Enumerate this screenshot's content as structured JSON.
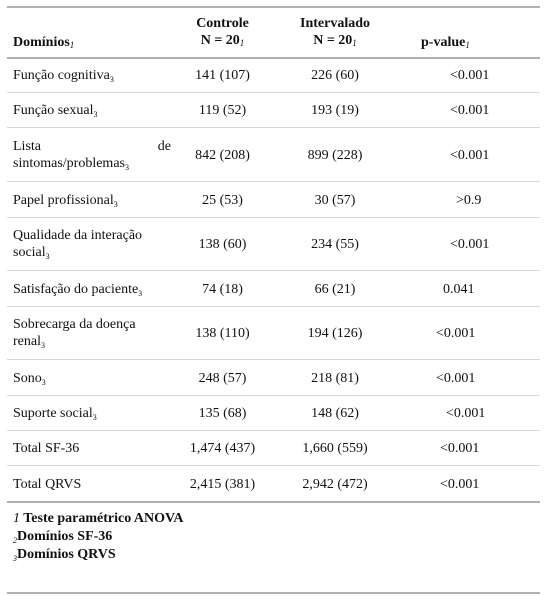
{
  "header": {
    "col1": "Domínios",
    "col1_note": "1",
    "col2_line1": "Controle",
    "col2_line2": "N = 20",
    "col2_note": "1",
    "col3_line1": "Intervalado",
    "col3_line2": "N = 20",
    "col3_note": "1",
    "col4": "p-value",
    "col4_note": "1"
  },
  "rows": [
    {
      "domain": "Função cognitiva",
      "note": "3",
      "controle": "141 (107)",
      "intervalado": "226 (60)",
      "p": "<0.001"
    },
    {
      "domain": "Função sexual",
      "note": "3",
      "controle": "119 (52)",
      "intervalado": "193 (19)",
      "p": "<0.001"
    },
    {
      "domain_line1": "Lista",
      "domain_line1b": "de",
      "domain_line2": "sintomas/problemas",
      "note": "3",
      "controle": "842 (208)",
      "intervalado": "899 (228)",
      "p": "<0.001"
    },
    {
      "domain": "Papel profissional",
      "note": "3",
      "controle": "25 (53)",
      "intervalado": "30 (57)",
      "p": ">0.9"
    },
    {
      "domain_line1": "Qualidade da interação",
      "domain_line2": "social",
      "note": "3",
      "controle": "138 (60)",
      "intervalado": "234 (55)",
      "p": "<0.001"
    },
    {
      "domain": "Satisfação do paciente",
      "note": "3",
      "controle": "74 (18)",
      "intervalado": "66 (21)",
      "p": "0.041"
    },
    {
      "domain_line1": "Sobrecarga da doença",
      "domain_line2": "renal",
      "note": "3",
      "controle": "138 (110)",
      "intervalado": "194 (126)",
      "p": "<0.001"
    },
    {
      "domain": "Sono",
      "note": "3",
      "controle": "248 (57)",
      "intervalado": "218 (81)",
      "p": "<0.001"
    },
    {
      "domain": "Suporte social",
      "note": "3",
      "controle": "135 (68)",
      "intervalado": "148 (62)",
      "p": "<0.001"
    },
    {
      "domain": "Total SF-36",
      "note": "",
      "controle": "1,474 (437)",
      "intervalado": "1,660 (559)",
      "p": "<0.001"
    },
    {
      "domain": "Total QRVS",
      "note": "",
      "controle": "2,415 (381)",
      "intervalado": "2,942 (472)",
      "p": "<0.001"
    }
  ],
  "footnotes": [
    {
      "mark": "1",
      "text": "Teste paramétrico ANOVA"
    },
    {
      "mark": "2",
      "text": "Domínios SF-36"
    },
    {
      "mark": "3",
      "text": "Domínios QRVS"
    }
  ]
}
